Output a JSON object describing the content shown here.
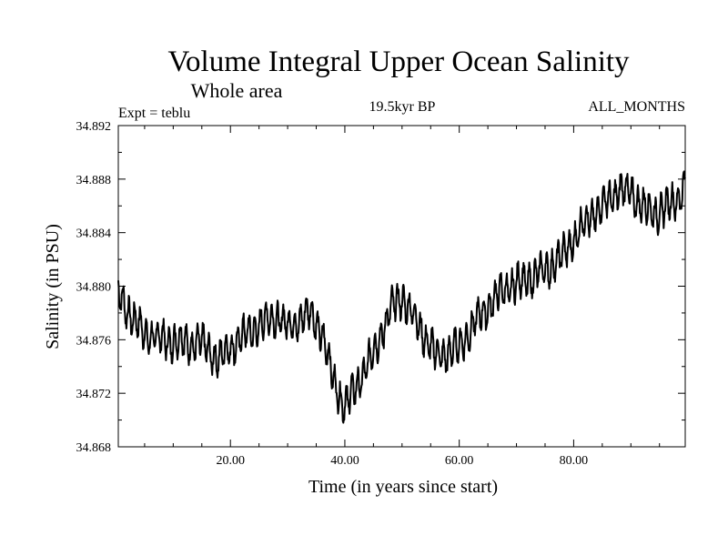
{
  "chart_data": {
    "type": "line",
    "title": "Volume Integral Upper Ocean Salinity",
    "subtitle": "Whole area",
    "info_left": "Expt = teblu",
    "info_center": "19.5kyr BP",
    "info_right": "ALL_MONTHS",
    "xlabel": "Time (in years since start)",
    "ylabel": "Salinity (in PSU)",
    "xlim": [
      0.4,
      99.5
    ],
    "ylim": [
      34.868,
      34.892
    ],
    "xticks": [
      20,
      40,
      60,
      80
    ],
    "xtick_labels": [
      "20.00",
      "40.00",
      "60.00",
      "80.00"
    ],
    "yticks": [
      34.868,
      34.872,
      34.876,
      34.88,
      34.884,
      34.888,
      34.892
    ],
    "ytick_labels": [
      "34.868",
      "34.872",
      "34.876",
      "34.880",
      "34.884",
      "34.888",
      "34.892"
    ],
    "series": [
      {
        "name": "Salinity",
        "trend_x": [
          0.4,
          3,
          5,
          8,
          12,
          15,
          18,
          20,
          24,
          28,
          30,
          34,
          36,
          38,
          40,
          42,
          45,
          48,
          50,
          52,
          54,
          56,
          58,
          60,
          62,
          65,
          68,
          72,
          75,
          78,
          80,
          82,
          85,
          88,
          90,
          92,
          94,
          96,
          98,
          99.5
        ],
        "trend_y": [
          34.8795,
          34.8775,
          34.8765,
          34.876,
          34.8758,
          34.8757,
          34.8745,
          34.8755,
          34.8768,
          34.8778,
          34.877,
          34.878,
          34.8765,
          34.873,
          34.871,
          34.8725,
          34.875,
          34.8782,
          34.8792,
          34.8778,
          34.8762,
          34.8748,
          34.875,
          34.8755,
          34.8768,
          34.8785,
          34.8798,
          34.8805,
          34.8812,
          34.8822,
          34.8835,
          34.8848,
          34.886,
          34.8872,
          34.887,
          34.886,
          34.8855,
          34.8858,
          34.8865,
          34.8875
        ],
        "seasonal_amplitude": 0.0011,
        "samples_per_year": 12,
        "noise_seed": 7
      }
    ]
  }
}
